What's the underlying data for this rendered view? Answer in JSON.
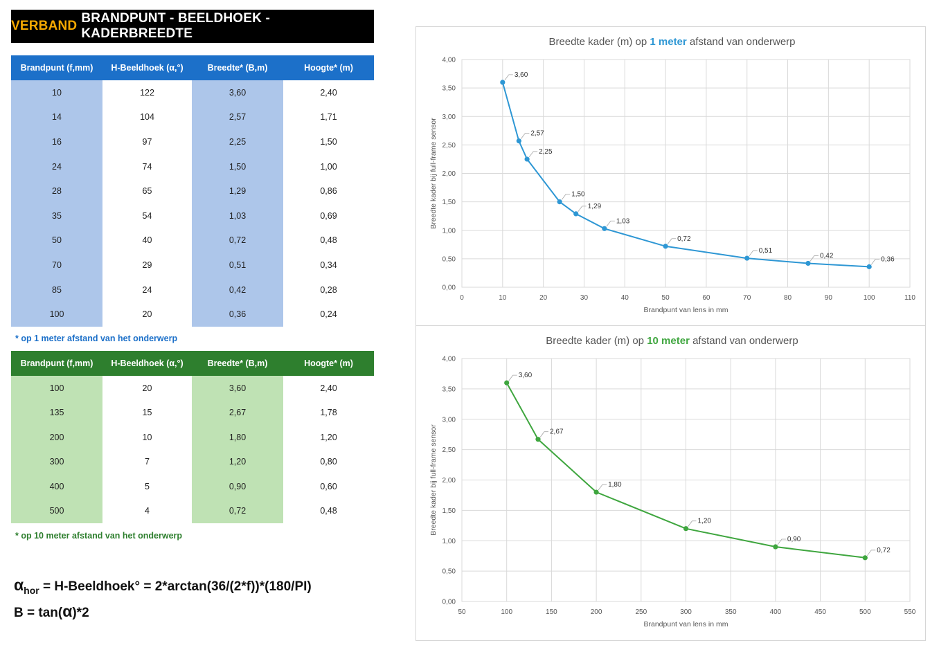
{
  "header": {
    "accent": "VERBAND",
    "rest": "BRANDPUNT - BEELDHOEK - KADERBREEDTE"
  },
  "table1": {
    "headers": [
      "Brandpunt (f,mm)",
      "H-Beeldhoek (α,°)",
      "Breedte* (B,m)",
      "Hoogte* (m)"
    ],
    "rows": [
      [
        "10",
        "122",
        "3,60",
        "2,40"
      ],
      [
        "14",
        "104",
        "2,57",
        "1,71"
      ],
      [
        "16",
        "97",
        "2,25",
        "1,50"
      ],
      [
        "24",
        "74",
        "1,50",
        "1,00"
      ],
      [
        "28",
        "65",
        "1,29",
        "0,86"
      ],
      [
        "35",
        "54",
        "1,03",
        "0,69"
      ],
      [
        "50",
        "40",
        "0,72",
        "0,48"
      ],
      [
        "70",
        "29",
        "0,51",
        "0,34"
      ],
      [
        "85",
        "24",
        "0,42",
        "0,28"
      ],
      [
        "100",
        "20",
        "0,36",
        "0,24"
      ]
    ],
    "footnote": "* op 1 meter afstand van het onderwerp"
  },
  "table2": {
    "headers": [
      "Brandpunt (f,mm)",
      "H-Beeldhoek (α,°)",
      "Breedte* (B,m)",
      "Hoogte* (m)"
    ],
    "rows": [
      [
        "100",
        "20",
        "3,60",
        "2,40"
      ],
      [
        "135",
        "15",
        "2,67",
        "1,78"
      ],
      [
        "200",
        "10",
        "1,80",
        "1,20"
      ],
      [
        "300",
        "7",
        "1,20",
        "0,80"
      ],
      [
        "400",
        "5",
        "0,90",
        "0,60"
      ],
      [
        "500",
        "4",
        "0,72",
        "0,48"
      ]
    ],
    "footnote": "* op 10 meter afstand van het onderwerp"
  },
  "formulas": {
    "line1_symbol": "α",
    "line1_sub": "hor",
    "line1_text": " = H-Beeldhoek° = 2*arctan(36/(2*f))*(180/PI)",
    "line2_prefix": "B = tan(",
    "line2_symbol": "α",
    "line2_suffix": ")*2"
  },
  "colors": {
    "blue": "#1c70c9",
    "green": "#2e7f2e",
    "accent": "#f5a800",
    "line_blue": "#2e97d4",
    "line_green": "#3fa63f"
  },
  "chart_data": [
    {
      "type": "line",
      "title_pre": "Breedte kader (m) op ",
      "title_hl": "1 meter",
      "title_post": " afstand van onderwerp",
      "xlabel": "Brandpunt van lens in mm",
      "ylabel": "Breedte kader bij full-frame sensor",
      "xlim": [
        0,
        110
      ],
      "ylim": [
        0,
        4
      ],
      "xticks": [
        0,
        10,
        20,
        30,
        40,
        50,
        60,
        70,
        80,
        90,
        100,
        110
      ],
      "yticks": [
        "0,00",
        "0,50",
        "1,00",
        "1,50",
        "2,00",
        "2,50",
        "3,00",
        "3,50",
        "4,00"
      ],
      "grid": true,
      "color": "#2e97d4",
      "x": [
        10,
        14,
        16,
        24,
        28,
        35,
        50,
        70,
        85,
        100
      ],
      "y": [
        3.6,
        2.57,
        2.25,
        1.5,
        1.29,
        1.03,
        0.72,
        0.51,
        0.42,
        0.36
      ],
      "labels": [
        "3,60",
        "2,57",
        "2,25",
        "1,50",
        "1,29",
        "1,03",
        "0,72",
        "0,51",
        "0,42",
        "0,36"
      ]
    },
    {
      "type": "line",
      "title_pre": "Breedte kader (m) op ",
      "title_hl": "10 meter",
      "title_post": " afstand van onderwerp",
      "xlabel": "Brandpunt van lens in mm",
      "ylabel": "Breedte kader bij full-frame sensor",
      "xlim": [
        50,
        550
      ],
      "ylim": [
        0,
        4
      ],
      "xticks": [
        50,
        100,
        150,
        200,
        250,
        300,
        350,
        400,
        450,
        500,
        550
      ],
      "yticks": [
        "0,00",
        "0,50",
        "1,00",
        "1,50",
        "2,00",
        "2,50",
        "3,00",
        "3,50",
        "4,00"
      ],
      "grid": true,
      "color": "#3fa63f",
      "x": [
        100,
        135,
        200,
        300,
        400,
        500
      ],
      "y": [
        3.6,
        2.67,
        1.8,
        1.2,
        0.9,
        0.72
      ],
      "labels": [
        "3,60",
        "2,67",
        "1,80",
        "1,20",
        "0,90",
        "0,72"
      ]
    }
  ]
}
